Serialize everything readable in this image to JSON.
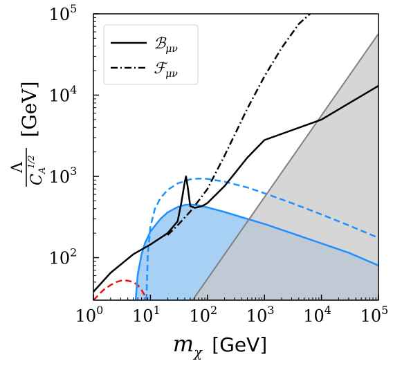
{
  "chart_data": {
    "type": "line",
    "xscale": "log",
    "yscale": "log",
    "xlim": [
      1,
      100000
    ],
    "ylim": [
      30,
      100000
    ],
    "x_ticks": [
      {
        "base": "10",
        "exp": "0",
        "value": 1
      },
      {
        "base": "10",
        "exp": "1",
        "value": 10
      },
      {
        "base": "10",
        "exp": "2",
        "value": 100
      },
      {
        "base": "10",
        "exp": "3",
        "value": 1000
      },
      {
        "base": "10",
        "exp": "4",
        "value": 10000
      },
      {
        "base": "10",
        "exp": "5",
        "value": 100000
      }
    ],
    "y_ticks": [
      {
        "base": "10",
        "exp": "2",
        "value": 100
      },
      {
        "base": "10",
        "exp": "3",
        "value": 1000
      },
      {
        "base": "10",
        "exp": "4",
        "value": 10000
      },
      {
        "base": "10",
        "exp": "5",
        "value": 100000
      }
    ],
    "xlabel": {
      "symbol": "m",
      "subscript": "χ",
      "unit": "[GeV]"
    },
    "ylabel": {
      "numerator": "Λ",
      "denominator": "C",
      "sub": "A",
      "sup": "1/2",
      "unit": "[GeV]"
    },
    "legend": {
      "placement": "top-left",
      "entries": [
        {
          "label": "ℬ",
          "sub": "μν",
          "style": "solid",
          "color": "#000000"
        },
        {
          "label": "ℱ",
          "sub": "μν",
          "style": "dashdot",
          "color": "#000000"
        }
      ]
    },
    "series": [
      {
        "name": "B_μν",
        "color": "#000000",
        "style": "solid",
        "x": [
          1,
          2,
          5,
          10,
          20,
          30,
          35,
          40,
          42,
          45,
          50,
          60,
          70,
          80,
          90,
          100,
          200,
          500,
          1000,
          10000,
          100000
        ],
        "y": [
          38,
          65,
          110,
          145,
          200,
          280,
          480,
          850,
          1000,
          750,
          430,
          410,
          420,
          430,
          450,
          470,
          760,
          1700,
          2800,
          5000,
          13000
        ]
      },
      {
        "name": "F_μν",
        "color": "#000000",
        "style": "dashdot",
        "x": [
          20,
          30,
          50,
          70,
          100,
          200,
          500,
          1000,
          2000,
          4000,
          6300
        ],
        "y": [
          190,
          250,
          370,
          500,
          700,
          1800,
          6800,
          17000,
          38000,
          75000,
          100000
        ]
      },
      {
        "name": "blue-solid",
        "color": "#1e90ff",
        "style": "solid",
        "x": [
          5.5,
          6,
          7,
          8,
          10,
          15,
          20,
          30,
          40,
          50,
          70,
          100,
          200,
          500,
          1000,
          3000,
          10000,
          30000,
          100000
        ],
        "y": [
          30,
          62,
          110,
          150,
          210,
          300,
          360,
          420,
          445,
          450,
          440,
          415,
          365,
          300,
          260,
          200,
          150,
          115,
          80
        ]
      },
      {
        "name": "blue-dashed",
        "color": "#1e90ff",
        "style": "dashed",
        "x": [
          8.5,
          9,
          10,
          12,
          15,
          20,
          30,
          50,
          70,
          100,
          200,
          500,
          1000,
          3000,
          10000,
          30000,
          100000
        ],
        "y": [
          30,
          110,
          240,
          400,
          540,
          680,
          820,
          920,
          940,
          930,
          860,
          730,
          620,
          470,
          340,
          250,
          175
        ]
      },
      {
        "name": "red-dashed",
        "color": "#ee1111",
        "style": "dashed",
        "x": [
          1,
          1.5,
          2,
          2.5,
          3,
          3.5,
          4,
          5,
          6,
          7,
          8,
          9
        ],
        "y": [
          30,
          40,
          46,
          50,
          52,
          52.5,
          52,
          50,
          46,
          40,
          34,
          30
        ]
      },
      {
        "name": "gray-boundary",
        "color": "#808080",
        "style": "solid",
        "x": [
          55,
          100000
        ],
        "y": [
          30,
          57000
        ]
      }
    ],
    "fill_regions": [
      {
        "name": "blue-region",
        "color": "#a8d0f5"
      },
      {
        "name": "gray-region",
        "color": "#c8c8c8"
      }
    ]
  }
}
